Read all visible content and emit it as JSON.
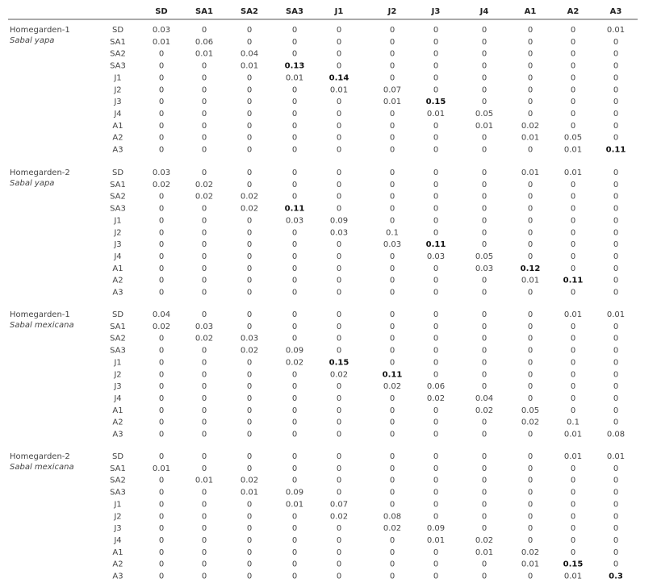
{
  "header": {
    "columns": [
      "SD",
      "SA1",
      "SA2",
      "SA3",
      "J1",
      "J2",
      "J3",
      "J4",
      "A1",
      "A2",
      "A3"
    ]
  },
  "blocks": [
    {
      "group": "Homegarden-1",
      "species": "Sabal yapa",
      "rows": [
        {
          "label": "SD",
          "cells": [
            "0.03",
            "0",
            "0",
            "0",
            "0",
            "0",
            "0",
            "0",
            "0",
            "0",
            "0.01"
          ]
        },
        {
          "label": "SA1",
          "cells": [
            "0.01",
            "0.06",
            "0",
            "0",
            "0",
            "0",
            "0",
            "0",
            "0",
            "0",
            "0"
          ]
        },
        {
          "label": "SA2",
          "cells": [
            "0",
            "0.01",
            "0.04",
            "0",
            "0",
            "0",
            "0",
            "0",
            "0",
            "0",
            "0"
          ]
        },
        {
          "label": "SA3",
          "cells": [
            "0",
            "0",
            "0.01",
            {
              "text": "0.13",
              "bold": true
            },
            "0",
            "0",
            "0",
            "0",
            "0",
            "0",
            "0"
          ]
        },
        {
          "label": "J1",
          "cells": [
            "0",
            "0",
            "0",
            "0.01",
            {
              "text": "0.14",
              "bold": true
            },
            "0",
            "0",
            "0",
            "0",
            "0",
            "0"
          ]
        },
        {
          "label": "J2",
          "cells": [
            "0",
            "0",
            "0",
            "0",
            "0.01",
            "0.07",
            "0",
            "0",
            "0",
            "0",
            "0"
          ]
        },
        {
          "label": "J3",
          "cells": [
            "0",
            "0",
            "0",
            "0",
            "0",
            "0.01",
            {
              "text": "0.15",
              "bold": true
            },
            "0",
            "0",
            "0",
            "0"
          ]
        },
        {
          "label": "J4",
          "cells": [
            "0",
            "0",
            "0",
            "0",
            "0",
            "0",
            "0.01",
            "0.05",
            "0",
            "0",
            "0"
          ]
        },
        {
          "label": "A1",
          "cells": [
            "0",
            "0",
            "0",
            "0",
            "0",
            "0",
            "0",
            "0.01",
            "0.02",
            "0",
            "0"
          ]
        },
        {
          "label": "A2",
          "cells": [
            "0",
            "0",
            "0",
            "0",
            "0",
            "0",
            "0",
            "0",
            "0.01",
            "0.05",
            "0"
          ]
        },
        {
          "label": "A3",
          "cells": [
            "0",
            "0",
            "0",
            "0",
            "0",
            "0",
            "0",
            "0",
            "0",
            "0.01",
            {
              "text": "0.11",
              "bold": true
            }
          ]
        }
      ]
    },
    {
      "group": "Homegarden-2",
      "species": "Sabal yapa",
      "rows": [
        {
          "label": "SD",
          "cells": [
            "0.03",
            "0",
            "0",
            "0",
            "0",
            "0",
            "0",
            "0",
            "0.01",
            "0.01",
            "0"
          ]
        },
        {
          "label": "SA1",
          "cells": [
            "0.02",
            "0.02",
            "0",
            "0",
            "0",
            "0",
            "0",
            "0",
            "0",
            "0",
            "0"
          ]
        },
        {
          "label": "SA2",
          "cells": [
            "0",
            "0.02",
            "0.02",
            "0",
            "0",
            "0",
            "0",
            "0",
            "0",
            "0",
            "0"
          ]
        },
        {
          "label": "SA3",
          "cells": [
            "0",
            "0",
            "0.02",
            {
              "text": "0.11",
              "bold": true
            },
            "0",
            "0",
            "0",
            "0",
            "0",
            "0",
            "0"
          ]
        },
        {
          "label": "J1",
          "cells": [
            "0",
            "0",
            "0",
            "0.03",
            "0.09",
            "0",
            "0",
            "0",
            "0",
            "0",
            "0"
          ]
        },
        {
          "label": "J2",
          "cells": [
            "0",
            "0",
            "0",
            "0",
            "0.03",
            "0.1",
            "0",
            "0",
            "0",
            "0",
            "0"
          ]
        },
        {
          "label": "J3",
          "cells": [
            "0",
            "0",
            "0",
            "0",
            "0",
            "0.03",
            {
              "text": "0.11",
              "bold": true
            },
            "0",
            "0",
            "0",
            "0"
          ]
        },
        {
          "label": "J4",
          "cells": [
            "0",
            "0",
            "0",
            "0",
            "0",
            "0",
            "0.03",
            "0.05",
            "0",
            "0",
            "0"
          ]
        },
        {
          "label": "A1",
          "cells": [
            "0",
            "0",
            "0",
            "0",
            "0",
            "0",
            "0",
            "0.03",
            {
              "text": "0.12",
              "bold": true
            },
            "0",
            "0"
          ]
        },
        {
          "label": "A2",
          "cells": [
            "0",
            "0",
            "0",
            "0",
            "0",
            "0",
            "0",
            "0",
            "0.01",
            {
              "text": "0.11",
              "bold": true
            },
            "0"
          ]
        },
        {
          "label": "A3",
          "cells": [
            "0",
            "0",
            "0",
            "0",
            "0",
            "0",
            "0",
            "0",
            "0",
            "0",
            "0"
          ]
        }
      ]
    },
    {
      "group": "Homegarden-1",
      "species": "Sabal mexicana",
      "rows": [
        {
          "label": "SD",
          "cells": [
            "0.04",
            "0",
            "0",
            "0",
            "0",
            "0",
            "0",
            "0",
            "0",
            "0.01",
            "0.01"
          ]
        },
        {
          "label": "SA1",
          "cells": [
            "0.02",
            "0.03",
            "0",
            "0",
            "0",
            "0",
            "0",
            "0",
            "0",
            "0",
            "0"
          ]
        },
        {
          "label": "SA2",
          "cells": [
            "0",
            "0.02",
            "0.03",
            "0",
            "0",
            "0",
            "0",
            "0",
            "0",
            "0",
            "0"
          ]
        },
        {
          "label": "SA3",
          "cells": [
            "0",
            "0",
            "0.02",
            "0.09",
            "0",
            "0",
            "0",
            "0",
            "0",
            "0",
            "0"
          ]
        },
        {
          "label": "J1",
          "cells": [
            "0",
            "0",
            "0",
            "0.02",
            {
              "text": "0.15",
              "bold": true
            },
            "0",
            "0",
            "0",
            "0",
            "0",
            "0"
          ]
        },
        {
          "label": "J2",
          "cells": [
            "0",
            "0",
            "0",
            "0",
            "0.02",
            {
              "text": "0.11",
              "bold": true
            },
            "0",
            "0",
            "0",
            "0",
            "0"
          ]
        },
        {
          "label": "J3",
          "cells": [
            "0",
            "0",
            "0",
            "0",
            "0",
            "0.02",
            "0.06",
            "0",
            "0",
            "0",
            "0"
          ]
        },
        {
          "label": "J4",
          "cells": [
            "0",
            "0",
            "0",
            "0",
            "0",
            "0",
            "0.02",
            "0.04",
            "0",
            "0",
            "0"
          ]
        },
        {
          "label": "A1",
          "cells": [
            "0",
            "0",
            "0",
            "0",
            "0",
            "0",
            "0",
            "0.02",
            "0.05",
            "0",
            "0"
          ]
        },
        {
          "label": "A2",
          "cells": [
            "0",
            "0",
            "0",
            "0",
            "0",
            "0",
            "0",
            "0",
            "0.02",
            "0.1",
            "0"
          ]
        },
        {
          "label": "A3",
          "cells": [
            "0",
            "0",
            "0",
            "0",
            "0",
            "0",
            "0",
            "0",
            "0",
            "0.01",
            "0.08"
          ]
        }
      ]
    },
    {
      "group": "Homegarden-2",
      "species": "Sabal mexicana",
      "rows": [
        {
          "label": "SD",
          "cells": [
            "0",
            "0",
            "0",
            "0",
            "0",
            "0",
            "0",
            "0",
            "0",
            "0.01",
            "0.01"
          ]
        },
        {
          "label": "SA1",
          "cells": [
            "0.01",
            "0",
            "0",
            "0",
            "0",
            "0",
            "0",
            "0",
            "0",
            "0",
            "0"
          ]
        },
        {
          "label": "SA2",
          "cells": [
            "0",
            "0.01",
            "0.02",
            "0",
            "0",
            "0",
            "0",
            "0",
            "0",
            "0",
            "0"
          ]
        },
        {
          "label": "SA3",
          "cells": [
            "0",
            "0",
            "0.01",
            "0.09",
            "0",
            "0",
            "0",
            "0",
            "0",
            "0",
            "0"
          ]
        },
        {
          "label": "J1",
          "cells": [
            "0",
            "0",
            "0",
            "0.01",
            "0.07",
            "0",
            "0",
            "0",
            "0",
            "0",
            "0"
          ]
        },
        {
          "label": "J2",
          "cells": [
            "0",
            "0",
            "0",
            "0",
            "0.02",
            "0.08",
            "0",
            "0",
            "0",
            "0",
            "0"
          ]
        },
        {
          "label": "J3",
          "cells": [
            "0",
            "0",
            "0",
            "0",
            "0",
            "0.02",
            "0.09",
            "0",
            "0",
            "0",
            "0"
          ]
        },
        {
          "label": "J4",
          "cells": [
            "0",
            "0",
            "0",
            "0",
            "0",
            "0",
            "0.01",
            "0.02",
            "0",
            "0",
            "0"
          ]
        },
        {
          "label": "A1",
          "cells": [
            "0",
            "0",
            "0",
            "0",
            "0",
            "0",
            "0",
            "0.01",
            "0.02",
            "0",
            "0"
          ]
        },
        {
          "label": "A2",
          "cells": [
            "0",
            "0",
            "0",
            "0",
            "0",
            "0",
            "0",
            "0",
            "0.01",
            {
              "text": "0.15",
              "bold": true
            },
            "0"
          ]
        },
        {
          "label": "A3",
          "cells": [
            "0",
            "0",
            "0",
            "0",
            "0",
            "0",
            "0",
            "0",
            "0",
            "0.01",
            {
              "text": "0.3",
              "bold": true
            }
          ]
        }
      ]
    }
  ]
}
